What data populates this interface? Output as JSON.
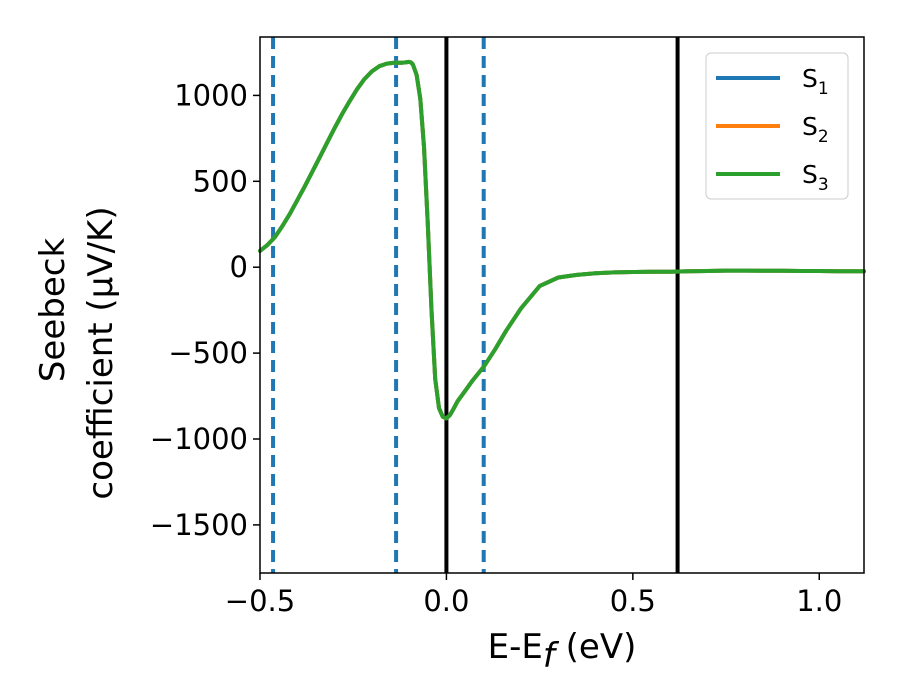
{
  "chart_data": {
    "type": "line",
    "xlabel": {
      "main": "E-E",
      "sub": "f",
      "tail": " (eV)"
    },
    "ylabel": {
      "line1": "Seebeck",
      "line2": "coefficient  (μV/K)"
    },
    "xlim": [
      -0.5,
      1.12
    ],
    "ylim": [
      -1780,
      1340
    ],
    "xticks": [
      {
        "value": -0.5,
        "label": "−0.5"
      },
      {
        "value": 0.0,
        "label": "0.0"
      },
      {
        "value": 0.5,
        "label": "0.5"
      },
      {
        "value": 1.0,
        "label": "1.0"
      }
    ],
    "yticks": [
      {
        "value": 1000,
        "label": "1000"
      },
      {
        "value": 500,
        "label": "500"
      },
      {
        "value": 0,
        "label": "0"
      },
      {
        "value": -500,
        "label": "−500"
      },
      {
        "value": -1000,
        "label": "−1000"
      },
      {
        "value": -1500,
        "label": "−1500"
      }
    ],
    "vlines": [
      {
        "x": -0.465,
        "style": "dashed",
        "color": "#1f77b4"
      },
      {
        "x": -0.135,
        "style": "dashed",
        "color": "#1f77b4"
      },
      {
        "x": 0.1,
        "style": "dashed",
        "color": "#1f77b4"
      },
      {
        "x": 0.0,
        "style": "solid",
        "color": "#000000"
      },
      {
        "x": 0.62,
        "style": "solid",
        "color": "#000000"
      }
    ],
    "legend": {
      "position": "top-right"
    },
    "x": [
      -0.5,
      -0.48,
      -0.46,
      -0.44,
      -0.42,
      -0.4,
      -0.38,
      -0.36,
      -0.34,
      -0.32,
      -0.3,
      -0.28,
      -0.26,
      -0.24,
      -0.22,
      -0.2,
      -0.18,
      -0.16,
      -0.14,
      -0.12,
      -0.11,
      -0.1,
      -0.095,
      -0.09,
      -0.08,
      -0.07,
      -0.06,
      -0.05,
      -0.04,
      -0.03,
      -0.02,
      -0.01,
      0.0,
      0.01,
      0.02,
      0.03,
      0.05,
      0.07,
      0.1,
      0.13,
      0.16,
      0.2,
      0.25,
      0.3,
      0.35,
      0.4,
      0.45,
      0.5,
      0.55,
      0.6,
      0.65,
      0.7,
      0.75,
      0.8,
      0.85,
      0.9,
      0.95,
      1.0,
      1.05,
      1.1,
      1.12
    ],
    "series": [
      {
        "name": "S",
        "sub": "1",
        "color": "#1f77b4",
        "values": [
          95,
          130,
          175,
          240,
          310,
          390,
          470,
          555,
          640,
          725,
          810,
          890,
          965,
          1035,
          1095,
          1140,
          1170,
          1185,
          1190,
          1190,
          1192,
          1195,
          1192,
          1180,
          1120,
          980,
          700,
          250,
          -250,
          -650,
          -820,
          -870,
          -880,
          -860,
          -820,
          -780,
          -720,
          -660,
          -580,
          -480,
          -370,
          -240,
          -110,
          -60,
          -45,
          -35,
          -30,
          -28,
          -27,
          -26,
          -24,
          -22,
          -20,
          -20,
          -21,
          -21,
          -22,
          -22,
          -23,
          -23,
          -23
        ]
      },
      {
        "name": "S",
        "sub": "2",
        "color": "#ff7f0e",
        "values": [
          95,
          130,
          175,
          240,
          310,
          390,
          470,
          555,
          640,
          725,
          810,
          890,
          965,
          1035,
          1095,
          1140,
          1170,
          1185,
          1190,
          1190,
          1192,
          1195,
          1192,
          1180,
          1120,
          980,
          700,
          250,
          -250,
          -650,
          -820,
          -870,
          -880,
          -860,
          -820,
          -780,
          -720,
          -660,
          -580,
          -480,
          -370,
          -240,
          -110,
          -60,
          -45,
          -35,
          -30,
          -28,
          -27,
          -26,
          -24,
          -22,
          -20,
          -20,
          -21,
          -21,
          -22,
          -22,
          -23,
          -23,
          -23
        ]
      },
      {
        "name": "S",
        "sub": "3",
        "color": "#2ca02c",
        "values": [
          95,
          130,
          175,
          240,
          310,
          390,
          470,
          555,
          640,
          725,
          810,
          890,
          965,
          1035,
          1095,
          1140,
          1170,
          1185,
          1190,
          1190,
          1192,
          1195,
          1192,
          1180,
          1120,
          980,
          700,
          250,
          -250,
          -650,
          -820,
          -870,
          -880,
          -860,
          -820,
          -780,
          -720,
          -660,
          -580,
          -480,
          -370,
          -240,
          -110,
          -60,
          -45,
          -35,
          -30,
          -28,
          -27,
          -26,
          -24,
          -22,
          -20,
          -20,
          -21,
          -21,
          -22,
          -22,
          -23,
          -23,
          -23
        ]
      }
    ]
  }
}
